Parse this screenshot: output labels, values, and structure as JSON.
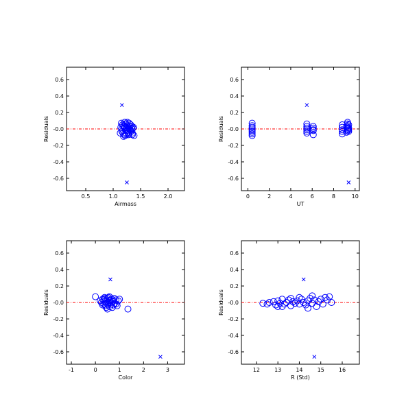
{
  "colors": {
    "points": "#0000ff",
    "zero_line": "#ff0000",
    "axes": "#000000",
    "background": "#ffffff"
  },
  "chart_data": [
    {
      "type": "scatter",
      "xlabel": "Airmass",
      "ylabel": "Residuals",
      "xlim": [
        0.15,
        2.3
      ],
      "ylim": [
        -0.75,
        0.75
      ],
      "xticks": [
        0.5,
        1.0,
        1.5,
        2.0
      ],
      "xtick_labels": [
        "0.5",
        "1.0",
        "1.5",
        "2.0"
      ],
      "yticks": [
        -0.6,
        -0.4,
        -0.2,
        0.0,
        0.2,
        0.4,
        0.6
      ],
      "ytick_labels": [
        "-0.6",
        "-0.4",
        "-0.2",
        "-0.0",
        "0.2",
        "0.4",
        "0.6"
      ],
      "zero_line": true,
      "series": [
        {
          "marker": "circle",
          "points": [
            [
              1.15,
              0.07
            ],
            [
              1.17,
              0.05
            ],
            [
              1.19,
              0.03
            ],
            [
              1.21,
              0.01
            ],
            [
              1.23,
              -0.01
            ],
            [
              1.16,
              -0.03
            ],
            [
              1.18,
              -0.05
            ],
            [
              1.2,
              -0.07
            ],
            [
              1.22,
              -0.08
            ],
            [
              1.24,
              0.06
            ],
            [
              1.26,
              0.04
            ],
            [
              1.28,
              0.02
            ],
            [
              1.3,
              0.0
            ],
            [
              1.25,
              -0.02
            ],
            [
              1.27,
              -0.04
            ],
            [
              1.29,
              -0.06
            ],
            [
              1.32,
              0.05
            ],
            [
              1.34,
              0.03
            ],
            [
              1.36,
              0.01
            ],
            [
              1.31,
              -0.01
            ],
            [
              1.33,
              -0.03
            ],
            [
              1.35,
              -0.05
            ],
            [
              1.14,
              0.02
            ],
            [
              1.16,
              0.0
            ],
            [
              1.2,
              0.04
            ],
            [
              1.22,
              0.06
            ],
            [
              1.24,
              -0.06
            ],
            [
              1.26,
              0.08
            ],
            [
              1.28,
              -0.07
            ],
            [
              1.3,
              0.03
            ],
            [
              1.32,
              -0.02
            ],
            [
              1.34,
              0.0
            ],
            [
              1.37,
              0.02
            ],
            [
              1.38,
              -0.08
            ],
            [
              1.13,
              -0.05
            ],
            [
              1.19,
              -0.09
            ],
            [
              1.21,
              0.08
            ],
            [
              1.27,
              0.01
            ],
            [
              1.29,
              0.07
            ],
            [
              1.35,
              -0.07
            ]
          ]
        },
        {
          "marker": "x",
          "points": [
            [
              1.16,
              0.29
            ],
            [
              1.25,
              -0.65
            ]
          ]
        }
      ]
    },
    {
      "type": "scatter",
      "xlabel": "UT",
      "ylabel": "Residuals",
      "xlim": [
        -0.6,
        10.4
      ],
      "ylim": [
        -0.75,
        0.75
      ],
      "xticks": [
        0,
        2,
        4,
        6,
        8,
        10
      ],
      "xtick_labels": [
        "0",
        "2",
        "4",
        "6",
        "8",
        "10"
      ],
      "yticks": [
        -0.6,
        -0.4,
        -0.2,
        0.0,
        0.2,
        0.4,
        0.6
      ],
      "ytick_labels": [
        "-0.6",
        "-0.4",
        "-0.2",
        "-0.0",
        "0.2",
        "0.4",
        "0.6"
      ],
      "zero_line": true,
      "series": [
        {
          "marker": "circle",
          "points": [
            [
              0.4,
              0.07
            ],
            [
              0.4,
              0.04
            ],
            [
              0.4,
              0.02
            ],
            [
              0.4,
              0.0
            ],
            [
              0.4,
              -0.02
            ],
            [
              0.4,
              -0.04
            ],
            [
              0.4,
              -0.06
            ],
            [
              0.4,
              -0.08
            ],
            [
              5.5,
              0.06
            ],
            [
              5.5,
              0.03
            ],
            [
              5.5,
              0.01
            ],
            [
              5.5,
              -0.01
            ],
            [
              5.5,
              -0.03
            ],
            [
              5.5,
              -0.05
            ],
            [
              6.1,
              0.03
            ],
            [
              6.1,
              0.01
            ],
            [
              6.1,
              -0.01
            ],
            [
              6.1,
              -0.02
            ],
            [
              6.1,
              -0.07
            ],
            [
              8.8,
              0.05
            ],
            [
              8.8,
              0.02
            ],
            [
              8.8,
              -0.01
            ],
            [
              8.8,
              -0.03
            ],
            [
              8.8,
              -0.06
            ],
            [
              9.3,
              0.08
            ],
            [
              9.3,
              0.06
            ],
            [
              9.3,
              0.04
            ],
            [
              9.3,
              0.02
            ],
            [
              9.3,
              0.0
            ],
            [
              9.3,
              -0.02
            ],
            [
              9.4,
              0.05
            ],
            [
              9.4,
              0.01
            ],
            [
              9.4,
              -0.01
            ],
            [
              9.4,
              -0.03
            ],
            [
              9.2,
              0.03
            ],
            [
              9.2,
              -0.04
            ]
          ]
        },
        {
          "marker": "x",
          "points": [
            [
              5.5,
              0.29
            ],
            [
              9.4,
              -0.65
            ]
          ]
        }
      ]
    },
    {
      "type": "scatter",
      "xlabel": "Color",
      "ylabel": "Residuals",
      "xlim": [
        -1.2,
        3.7
      ],
      "ylim": [
        -0.75,
        0.75
      ],
      "xticks": [
        -1,
        0,
        1,
        2,
        3
      ],
      "xtick_labels": [
        "-1",
        "0",
        "1",
        "2",
        "3"
      ],
      "yticks": [
        -0.6,
        -0.4,
        -0.2,
        0.0,
        0.2,
        0.4,
        0.6
      ],
      "ytick_labels": [
        "-0.6",
        "-0.4",
        "-0.2",
        "-0.0",
        "0.2",
        "0.4",
        "0.6"
      ],
      "zero_line": true,
      "series": [
        {
          "marker": "circle",
          "points": [
            [
              0.0,
              0.07
            ],
            [
              0.2,
              0.02
            ],
            [
              0.25,
              0.0
            ],
            [
              0.3,
              0.04
            ],
            [
              0.35,
              -0.02
            ],
            [
              0.38,
              0.06
            ],
            [
              0.4,
              0.01
            ],
            [
              0.42,
              -0.04
            ],
            [
              0.45,
              0.03
            ],
            [
              0.48,
              -0.01
            ],
            [
              0.5,
              0.05
            ],
            [
              0.52,
              -0.03
            ],
            [
              0.55,
              0.0
            ],
            [
              0.58,
              0.07
            ],
            [
              0.6,
              -0.05
            ],
            [
              0.62,
              0.02
            ],
            [
              0.65,
              -0.02
            ],
            [
              0.68,
              0.04
            ],
            [
              0.7,
              -0.06
            ],
            [
              0.72,
              0.01
            ],
            [
              0.75,
              -0.03
            ],
            [
              0.78,
              0.05
            ],
            [
              0.8,
              -0.01
            ],
            [
              0.85,
              0.03
            ],
            [
              0.9,
              -0.04
            ],
            [
              0.95,
              0.02
            ],
            [
              1.0,
              0.04
            ],
            [
              0.35,
              0.03
            ],
            [
              0.45,
              -0.06
            ],
            [
              0.55,
              0.06
            ],
            [
              0.65,
              0.0
            ],
            [
              0.75,
              0.02
            ],
            [
              0.85,
              -0.02
            ],
            [
              1.35,
              -0.08
            ],
            [
              0.5,
              -0.08
            ],
            [
              0.4,
              0.05
            ],
            [
              0.6,
              0.03
            ],
            [
              0.3,
              -0.03
            ]
          ]
        },
        {
          "marker": "x",
          "points": [
            [
              0.62,
              0.28
            ],
            [
              2.7,
              -0.66
            ]
          ]
        }
      ]
    },
    {
      "type": "scatter",
      "xlabel": "R (Std)",
      "ylabel": "Residuals",
      "xlim": [
        11.3,
        16.8
      ],
      "ylim": [
        -0.75,
        0.75
      ],
      "xticks": [
        12,
        13,
        14,
        15,
        16
      ],
      "xtick_labels": [
        "12",
        "13",
        "14",
        "15",
        "16"
      ],
      "yticks": [
        -0.6,
        -0.4,
        -0.2,
        0.0,
        0.2,
        0.4,
        0.6
      ],
      "ytick_labels": [
        "-0.6",
        "-0.4",
        "-0.2",
        "-0.0",
        "0.2",
        "0.4",
        "0.6"
      ],
      "zero_line": true,
      "series": [
        {
          "marker": "circle",
          "points": [
            [
              12.3,
              -0.01
            ],
            [
              12.5,
              -0.02
            ],
            [
              12.6,
              0.0
            ],
            [
              12.8,
              0.01
            ],
            [
              12.9,
              -0.03
            ],
            [
              13.0,
              0.02
            ],
            [
              13.1,
              -0.01
            ],
            [
              13.2,
              0.04
            ],
            [
              13.3,
              -0.02
            ],
            [
              13.4,
              0.0
            ],
            [
              13.5,
              0.03
            ],
            [
              13.6,
              -0.04
            ],
            [
              13.7,
              0.01
            ],
            [
              13.8,
              -0.01
            ],
            [
              13.9,
              0.02
            ],
            [
              14.0,
              -0.02
            ],
            [
              14.1,
              0.04
            ],
            [
              14.2,
              0.0
            ],
            [
              14.3,
              -0.03
            ],
            [
              14.4,
              0.02
            ],
            [
              14.5,
              0.05
            ],
            [
              14.6,
              -0.01
            ],
            [
              14.7,
              0.03
            ],
            [
              14.8,
              -0.05
            ],
            [
              14.9,
              0.01
            ],
            [
              15.0,
              0.04
            ],
            [
              15.1,
              -0.02
            ],
            [
              15.2,
              0.06
            ],
            [
              15.3,
              0.03
            ],
            [
              15.4,
              0.07
            ],
            [
              15.5,
              0.0
            ],
            [
              13.2,
              -0.05
            ],
            [
              13.6,
              0.05
            ],
            [
              14.4,
              -0.07
            ],
            [
              14.6,
              0.08
            ],
            [
              14.0,
              0.06
            ],
            [
              13.0,
              -0.05
            ]
          ]
        },
        {
          "marker": "x",
          "points": [
            [
              14.2,
              0.28
            ],
            [
              14.7,
              -0.66
            ]
          ]
        }
      ]
    }
  ]
}
